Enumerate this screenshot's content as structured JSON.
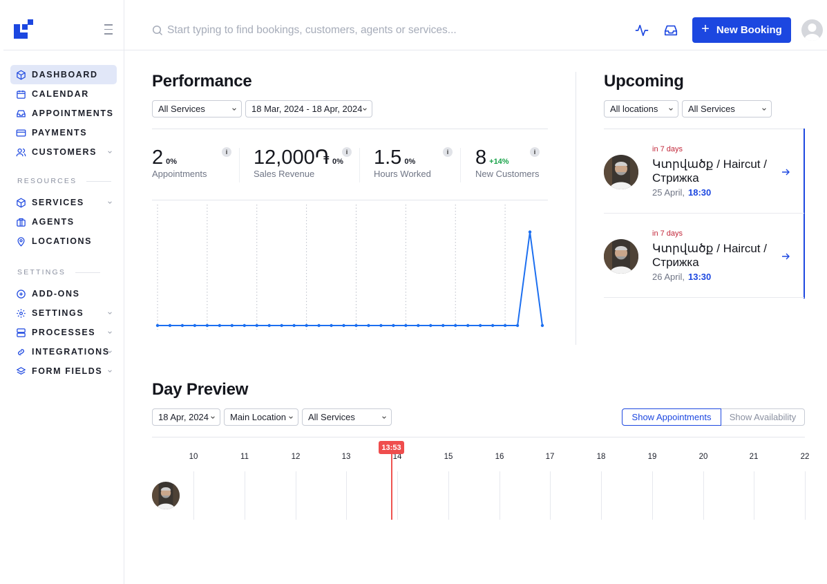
{
  "colors": {
    "accent": "#1c47e0",
    "danger": "#ef4d4d",
    "positive": "#19a34a"
  },
  "sidebar": {
    "logo_icon": "brand-logo-icon",
    "items": [
      {
        "label": "DASHBOARD",
        "icon": "cube-icon",
        "active": true
      },
      {
        "label": "CALENDAR",
        "icon": "calendar-icon"
      },
      {
        "label": "APPOINTMENTS",
        "icon": "inbox-icon"
      },
      {
        "label": "PAYMENTS",
        "icon": "credit-card-icon"
      },
      {
        "label": "CUSTOMERS",
        "icon": "users-icon",
        "has_submenu": true
      }
    ],
    "resources_title": "RESOURCES",
    "resources": [
      {
        "label": "SERVICES",
        "icon": "box-icon",
        "has_submenu": true
      },
      {
        "label": "AGENTS",
        "icon": "briefcase-icon"
      },
      {
        "label": "LOCATIONS",
        "icon": "map-pin-icon"
      }
    ],
    "settings_title": "SETTINGS",
    "settings": [
      {
        "label": "ADD-ONS",
        "icon": "plus-circle-icon"
      },
      {
        "label": "SETTINGS",
        "icon": "gear-icon",
        "has_submenu": true
      },
      {
        "label": "PROCESSES",
        "icon": "server-icon",
        "has_submenu": true
      },
      {
        "label": "INTEGRATIONS",
        "icon": "link-icon",
        "has_submenu": true
      },
      {
        "label": "FORM FIELDS",
        "icon": "layers-icon",
        "has_submenu": true
      }
    ]
  },
  "topbar": {
    "search_placeholder": "Start typing to find bookings, customers, agents or services...",
    "new_booking_label": "New Booking"
  },
  "performance": {
    "title": "Performance",
    "service_filter": "All Services",
    "date_range": "18 Mar, 2024 - 18 Apr, 2024",
    "stats": [
      {
        "value": "2",
        "change": "0%",
        "label": "Appointments"
      },
      {
        "value": "12,000֏",
        "change": "0%",
        "label": "Sales Revenue"
      },
      {
        "value": "1.5",
        "change": "0%",
        "label": "Hours Worked"
      },
      {
        "value": "8",
        "change": "+14%",
        "label": "New Customers"
      }
    ],
    "info_label": "i"
  },
  "chart_data": {
    "type": "line",
    "title": "",
    "xlabel": "",
    "ylabel": "",
    "series": [
      {
        "values": [
          0,
          0,
          0,
          0,
          0,
          0,
          0,
          0,
          0,
          0,
          0,
          0,
          0,
          0,
          0,
          0,
          0,
          0,
          0,
          0,
          0,
          0,
          0,
          0,
          0,
          0,
          0,
          0,
          0,
          0,
          1,
          0
        ]
      }
    ],
    "ylim": [
      0,
      1.2
    ],
    "grid": "vertical dotted"
  },
  "upcoming": {
    "title": "Upcoming",
    "location_filter": "All locations",
    "service_filter": "All Services",
    "items": [
      {
        "when": "in 7 days",
        "title": "Կտրվածք / Haircut / Стрижка",
        "date": "25 April,",
        "time": "18:30"
      },
      {
        "when": "in 7 days",
        "title": "Կտրվածք / Haircut / Стрижка",
        "date": "26 April,",
        "time": "13:30"
      }
    ]
  },
  "day_preview": {
    "title": "Day Preview",
    "date": "18 Apr, 2024",
    "location": "Main Location",
    "service": "All Services",
    "show_appointments": "Show Appointments",
    "show_availability": "Show Availability",
    "hours": [
      "10",
      "11",
      "12",
      "13",
      "14",
      "15",
      "16",
      "17",
      "18",
      "19",
      "20",
      "21",
      "22"
    ],
    "now": "13:53"
  }
}
